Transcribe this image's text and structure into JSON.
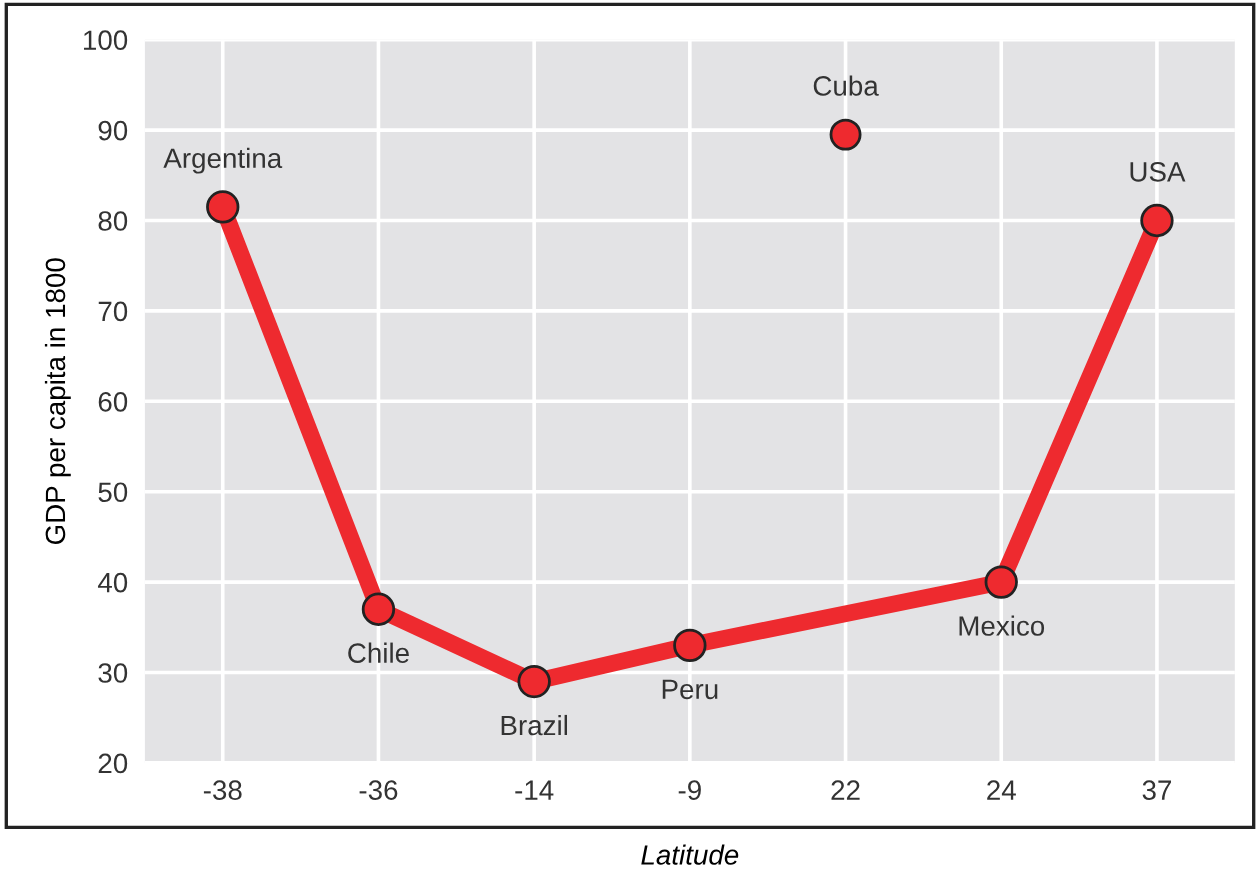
{
  "chart_data": {
    "type": "line",
    "xlabel": "Latitude",
    "ylabel": "GDP per capita in 1800",
    "categories": [
      "-38",
      "-36",
      "-14",
      "-9",
      "22",
      "24",
      "37"
    ],
    "series": [
      {
        "color": "#ee2a2f",
        "x": [
          "-38",
          "-36",
          "-14",
          "-9",
          "24",
          "37"
        ],
        "values": [
          81.5,
          37,
          29,
          33,
          40,
          80
        ],
        "marker": "circle"
      },
      {
        "type": "scatter",
        "color": "#ee2a2f",
        "x": [
          "22"
        ],
        "values": [
          89.5
        ],
        "marker": "circle"
      }
    ],
    "annotations": [
      {
        "text": "Argentina",
        "x": "-38",
        "y": 81.5
      },
      {
        "text": "Chile",
        "x": "-36",
        "y": 37
      },
      {
        "text": "Brazil",
        "x": "-14",
        "y": 29
      },
      {
        "text": "Peru",
        "x": "-9",
        "y": 33
      },
      {
        "text": "Cuba",
        "x": "22",
        "y": 89.5
      },
      {
        "text": "Mexico",
        "x": "24",
        "y": 40
      },
      {
        "text": "USA",
        "x": "37",
        "y": 80
      }
    ],
    "ylim": [
      20,
      100
    ],
    "yticks": [
      20,
      30,
      40,
      50,
      60,
      70,
      80,
      90,
      100
    ],
    "grid": true,
    "legend": false
  }
}
